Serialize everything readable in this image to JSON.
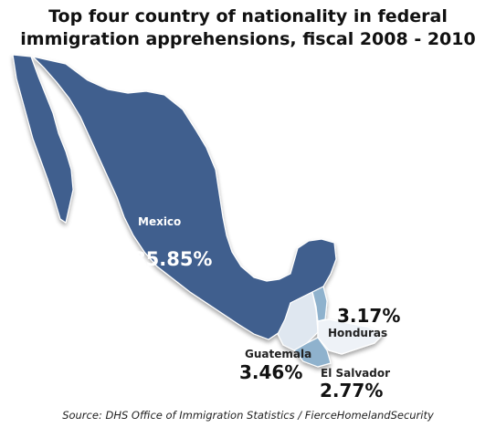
{
  "title": {
    "line1": "Top four country of nationality in federal",
    "line2": "immigration apprehensions, fiscal 2008 - 2010"
  },
  "regions": [
    {
      "name": "Mexico",
      "percent": "85.85%",
      "value": 85.85,
      "color": "#3f5f8e"
    },
    {
      "name": "Guatemala",
      "percent": "3.46%",
      "value": 3.46,
      "color": "#dfe7f0"
    },
    {
      "name": "Honduras",
      "percent": "3.17%",
      "value": 3.17,
      "color": "#eef2f7"
    },
    {
      "name": "El Salvador",
      "percent": "2.77%",
      "value": 2.77,
      "color": "#8fb2cd"
    }
  ],
  "source": "Source: DHS Office of Immigration Statistics / FierceHomelandSecurity"
}
